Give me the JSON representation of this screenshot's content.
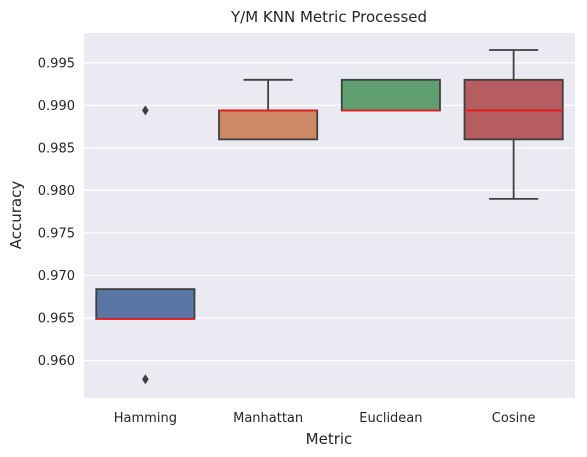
{
  "chart_data": {
    "type": "box",
    "title": "Y/M KNN Metric Processed",
    "xlabel": "Metric",
    "ylabel": "Accuracy",
    "ylim": [
      0.9556,
      0.9985
    ],
    "yticks": [
      "0.960",
      "0.965",
      "0.970",
      "0.975",
      "0.980",
      "0.985",
      "0.990",
      "0.995"
    ],
    "grid": true,
    "background": "#eaeaf2",
    "median_color": "#e41a1c",
    "categories": [
      "Hamming",
      "Manhattan",
      "Euclidean",
      "Cosine"
    ],
    "boxes": [
      {
        "name": "Hamming",
        "color": "#5875a4",
        "whisker_low": 0.9649,
        "q1": 0.9649,
        "median": 0.9649,
        "q3": 0.9684,
        "whisker_high": 0.9684,
        "outliers": [
          0.9894,
          0.9578
        ]
      },
      {
        "name": "Manhattan",
        "color": "#cc8963",
        "whisker_low": 0.986,
        "q1": 0.986,
        "median": 0.9894,
        "q3": 0.9894,
        "whisker_high": 0.993,
        "outliers": []
      },
      {
        "name": "Euclidean",
        "color": "#5f9e6e",
        "whisker_low": 0.9894,
        "q1": 0.9894,
        "median": 0.9894,
        "q3": 0.993,
        "whisker_high": 0.993,
        "outliers": []
      },
      {
        "name": "Cosine",
        "color": "#b55d60",
        "whisker_low": 0.979,
        "q1": 0.986,
        "median": 0.9894,
        "q3": 0.993,
        "whisker_high": 0.9965,
        "outliers": []
      }
    ]
  }
}
